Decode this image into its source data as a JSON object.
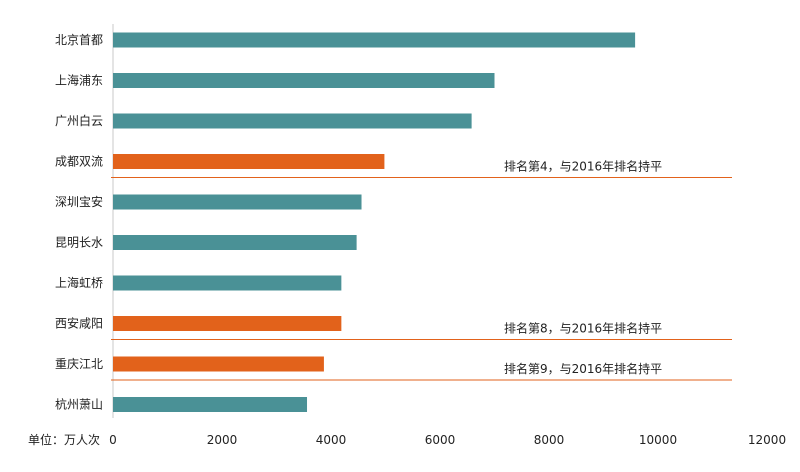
{
  "chart_data": {
    "type": "bar",
    "orientation": "horizontal",
    "categories": [
      "北京首都",
      "上海浦东",
      "广州白云",
      "成都双流",
      "深圳宝安",
      "昆明长水",
      "上海虹桥",
      "西安咸阳",
      "重庆江北",
      "杭州萧山"
    ],
    "values": [
      9580,
      7000,
      6580,
      4980,
      4560,
      4470,
      4190,
      4190,
      3870,
      3560
    ],
    "highlighted": [
      false,
      false,
      false,
      true,
      false,
      false,
      false,
      true,
      true,
      false
    ],
    "xlim": [
      0,
      12000
    ],
    "x_ticks": [
      "0",
      "2000",
      "4000",
      "6000",
      "8000",
      "10000",
      "12000"
    ],
    "x_tick_values": [
      0,
      2000,
      4000,
      6000,
      8000,
      10000,
      12000
    ],
    "unit_label": "单位：万人次",
    "colors": {
      "normal": "#4a9196",
      "highlight": "#e2621b",
      "annotation_line": "#e2621b"
    },
    "annotations": [
      {
        "category_index": 3,
        "text": "排名第4，与2016年排名持平"
      },
      {
        "category_index": 7,
        "text": "排名第8，与2016年排名持平"
      },
      {
        "category_index": 8,
        "text": "排名第9，与2016年排名持平"
      }
    ],
    "grid": false,
    "legend": "none"
  }
}
